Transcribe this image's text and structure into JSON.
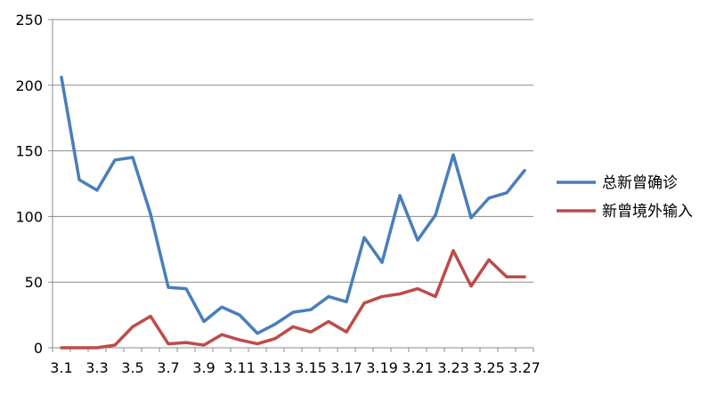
{
  "chart_data": {
    "type": "line",
    "title": "",
    "xlabel": "",
    "ylabel": "",
    "ylim": [
      0,
      250
    ],
    "yticks": [
      0,
      50,
      100,
      150,
      200,
      250
    ],
    "grid": "horizontal",
    "legend_position": "right",
    "x": [
      "3.1",
      "3.2",
      "3.3",
      "3.4",
      "3.5",
      "3.6",
      "3.7",
      "3.8",
      "3.9",
      "3.10",
      "3.11",
      "3.12",
      "3.13",
      "3.14",
      "3.15",
      "3.16",
      "3.17",
      "3.18",
      "3.19",
      "3.20",
      "3.21",
      "3.22",
      "3.23",
      "3.24",
      "3.25",
      "3.26",
      "3.27"
    ],
    "x_tick_labels": [
      "3.1",
      "3.3",
      "3.5",
      "3.7",
      "3.9",
      "3.11",
      "3.13",
      "3.15",
      "3.17",
      "3.19",
      "3.21",
      "3.23",
      "3.25",
      "3.27"
    ],
    "series": [
      {
        "name": "总新曾确诊",
        "color": "#4a7ebb",
        "values": [
          206,
          128,
          120,
          143,
          145,
          102,
          46,
          45,
          20,
          31,
          25,
          11,
          18,
          27,
          29,
          39,
          35,
          84,
          65,
          116,
          82,
          101,
          147,
          99,
          114,
          118,
          135
        ]
      },
      {
        "name": "新曾境外输入",
        "color": "#be4b48",
        "values": [
          0,
          0,
          0,
          2,
          16,
          24,
          3,
          4,
          2,
          10,
          6,
          3,
          7,
          16,
          12,
          20,
          12,
          34,
          39,
          41,
          45,
          39,
          74,
          47,
          67,
          54,
          54
        ]
      }
    ]
  }
}
